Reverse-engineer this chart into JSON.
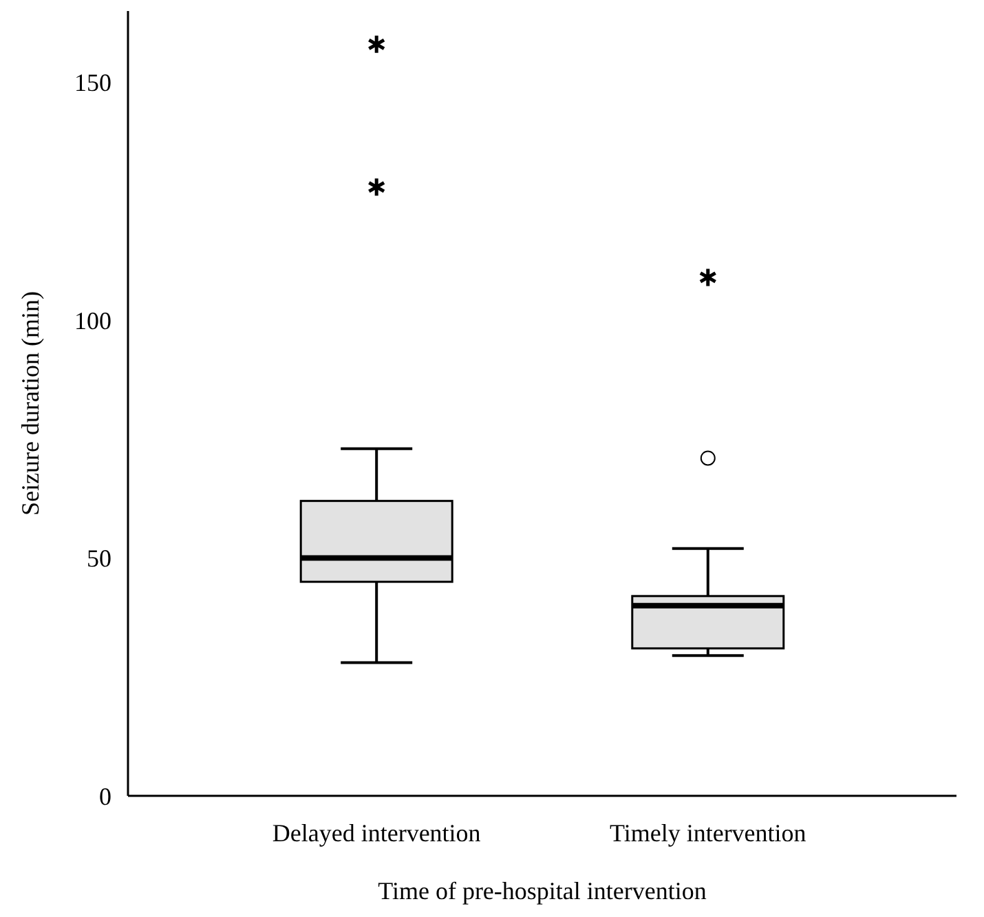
{
  "chart_data": {
    "type": "box",
    "xlabel": "Time of pre-hospital intervention",
    "ylabel": "Seizure duration (min)",
    "categories": [
      "Delayed intervention",
      "Timely intervention"
    ],
    "color": "#e2e2e2",
    "ylim": [
      0,
      165
    ],
    "yticks": [
      0,
      50,
      100,
      150
    ],
    "grid": false,
    "boxes": [
      {
        "low": 28,
        "q1": 45,
        "median": 50,
        "q3": 62,
        "high": 73,
        "outliers": [
          158,
          128
        ]
      },
      {
        "low": 29.5,
        "q1": 31,
        "median": 40,
        "q3": 42,
        "high": 52,
        "outliers": [
          71,
          109
        ]
      }
    ]
  }
}
